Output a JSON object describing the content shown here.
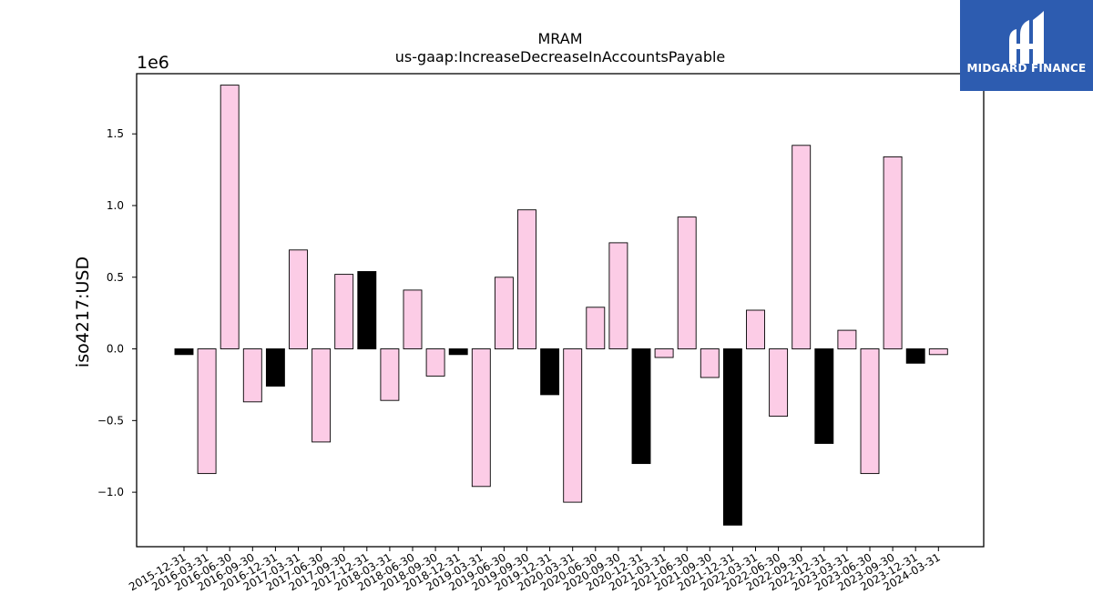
{
  "chart_data": {
    "type": "bar",
    "title": "MRAM",
    "subtitle": "us-gaap:IncreaseDecreaseInAccountsPayable",
    "ylabel": "iso4217:USD",
    "xlabel": "",
    "offset_label": "1e6",
    "ylim": [
      -1.38,
      1.92
    ],
    "yticks": [
      -1.0,
      -0.5,
      0.0,
      0.5,
      1.0,
      1.5
    ],
    "ytick_labels": [
      "−1.0",
      "−0.5",
      "0.0",
      "0.5",
      "1.0",
      "1.5"
    ],
    "categories": [
      "2015-12-31",
      "2016-03-31",
      "2016-06-30",
      "2016-09-30",
      "2016-12-31",
      "2017-03-31",
      "2017-06-30",
      "2017-09-30",
      "2017-12-31",
      "2018-03-31",
      "2018-06-30",
      "2018-09-30",
      "2018-12-31",
      "2019-03-31",
      "2019-06-30",
      "2019-09-30",
      "2019-12-31",
      "2020-03-31",
      "2020-06-30",
      "2020-09-30",
      "2020-12-31",
      "2021-03-31",
      "2021-06-30",
      "2021-09-30",
      "2021-12-31",
      "2022-03-31",
      "2022-06-30",
      "2022-09-30",
      "2022-12-31",
      "2023-03-31",
      "2023-06-30",
      "2023-09-30",
      "2023-12-31",
      "2024-03-31"
    ],
    "values": [
      -0.04,
      -0.87,
      1.84,
      -0.37,
      -0.26,
      0.69,
      -0.65,
      0.52,
      0.54,
      -0.36,
      0.41,
      -0.19,
      -0.04,
      -0.96,
      0.5,
      0.97,
      -0.32,
      -1.07,
      0.29,
      0.74,
      -0.8,
      -0.06,
      0.92,
      -0.2,
      -1.23,
      0.27,
      -0.47,
      1.42,
      -0.66,
      0.13,
      -0.87,
      1.34,
      -0.1,
      -0.04
    ],
    "fill": [
      "black",
      "pink",
      "pink",
      "pink",
      "black",
      "pink",
      "pink",
      "pink",
      "black",
      "pink",
      "pink",
      "pink",
      "black",
      "pink",
      "pink",
      "pink",
      "black",
      "pink",
      "pink",
      "pink",
      "black",
      "pink",
      "pink",
      "pink",
      "black",
      "pink",
      "pink",
      "pink",
      "black",
      "pink",
      "pink",
      "pink",
      "black",
      "pink"
    ],
    "colors": {
      "pink": "#fccce6",
      "black": "#000000",
      "edge": "#000000"
    },
    "grid": false
  },
  "logo": {
    "text": "MIDGARD FINANCE",
    "background": "#2d5cb0"
  }
}
